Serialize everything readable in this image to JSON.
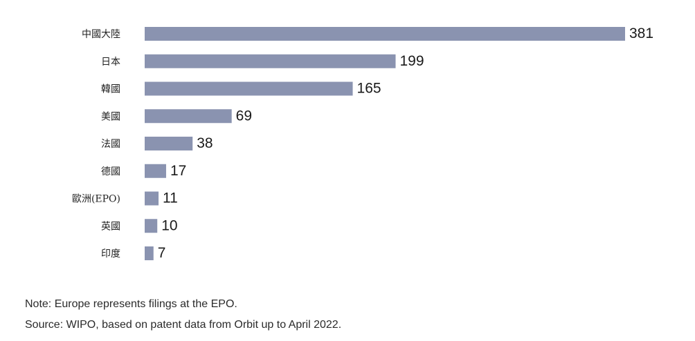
{
  "chart_data": {
    "type": "bar",
    "orientation": "horizontal",
    "categories": [
      "中國大陸",
      "日本",
      "韓國",
      "美國",
      "法國",
      "德國",
      "歐洲(EPO)",
      "英國",
      "印度"
    ],
    "values": [
      381,
      199,
      165,
      69,
      38,
      17,
      11,
      10,
      7
    ],
    "data_labels": [
      "381",
      "199",
      "165",
      "69",
      "38",
      "17",
      "11",
      "10",
      "7"
    ],
    "bar_color": "#8a93b0",
    "xlim": [
      0,
      381
    ],
    "grid": false,
    "legend": "none"
  },
  "notes": {
    "note": "Note: Europe represents filings at the EPO.",
    "source": "Source: WIPO, based on patent data from Orbit up to April 2022."
  }
}
